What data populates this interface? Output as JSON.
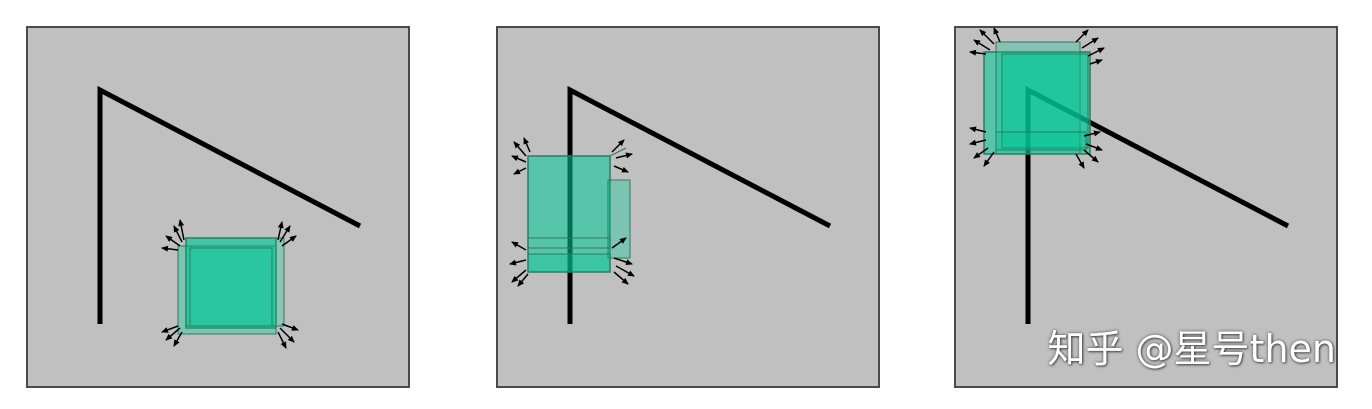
{
  "watermark": "知乎 @星号then",
  "colors": {
    "background": "#c0c0c0",
    "line": "#000000",
    "box_fill": "#00c896",
    "arrow": "#000000"
  }
}
